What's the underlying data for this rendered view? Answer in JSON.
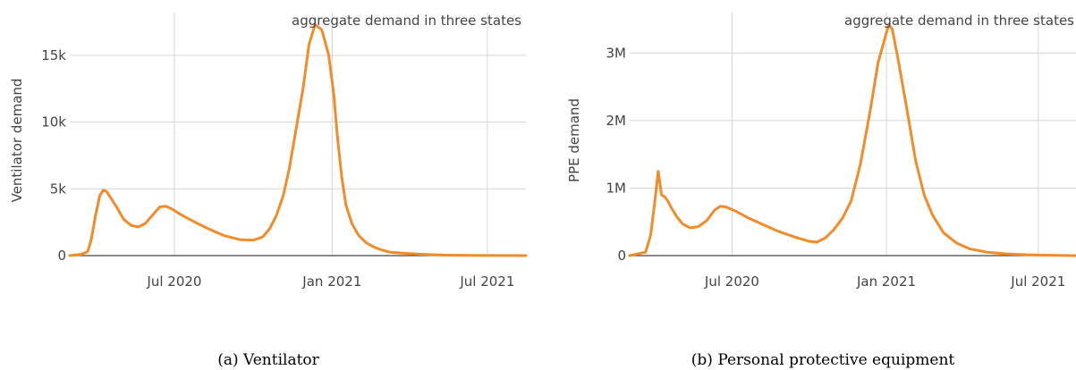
{
  "chart_data": [
    {
      "type": "line",
      "caption": "(a) Ventilator",
      "annotation": "aggregate demand in three states",
      "ylabel": "Ventilator demand",
      "xlabel": "",
      "x_ticks": [
        {
          "date": "2020-07-01",
          "label": "Jul 2020"
        },
        {
          "date": "2021-01-01",
          "label": "Jan 2021"
        },
        {
          "date": "2021-07-01",
          "label": "Jul 2021"
        }
      ],
      "y_ticks": [
        {
          "value": 0,
          "label": "0"
        },
        {
          "value": 5000,
          "label": "5k"
        },
        {
          "value": 10000,
          "label": "10k"
        },
        {
          "value": 15000,
          "label": "15k"
        }
      ],
      "xlim": [
        "2020-03-01",
        "2021-08-15"
      ],
      "ylim": [
        0,
        18200
      ],
      "grid": true,
      "color": "#f28c28",
      "series": [
        {
          "x": [
            "2020-03-01",
            "2020-03-15",
            "2020-03-22",
            "2020-03-26",
            "2020-03-31",
            "2020-04-05",
            "2020-04-09",
            "2020-04-13",
            "2020-04-18",
            "2020-04-25",
            "2020-05-03",
            "2020-05-12",
            "2020-05-20",
            "2020-05-28",
            "2020-06-05",
            "2020-06-14",
            "2020-06-21",
            "2020-06-28",
            "2020-07-04",
            "2020-07-12",
            "2020-07-25",
            "2020-08-10",
            "2020-08-28",
            "2020-09-15",
            "2020-10-01",
            "2020-10-12",
            "2020-10-20",
            "2020-10-28",
            "2020-11-05",
            "2020-11-12",
            "2020-11-20",
            "2020-11-28",
            "2020-12-05",
            "2020-12-12",
            "2020-12-20",
            "2020-12-28",
            "2021-01-03",
            "2021-01-07",
            "2021-01-12",
            "2021-01-17",
            "2021-01-24",
            "2021-02-01",
            "2021-02-10",
            "2021-02-20",
            "2021-03-01",
            "2021-03-10",
            "2021-03-20",
            "2021-04-01",
            "2021-04-15",
            "2021-05-01",
            "2021-05-20",
            "2021-06-10",
            "2021-07-01",
            "2021-07-25",
            "2021-08-15"
          ],
          "y": [
            0,
            100,
            300,
            1200,
            3000,
            4500,
            4900,
            4800,
            4300,
            3600,
            2700,
            2250,
            2150,
            2400,
            3000,
            3650,
            3700,
            3500,
            3250,
            2950,
            2500,
            2000,
            1500,
            1200,
            1150,
            1400,
            2000,
            3000,
            4500,
            6500,
            9500,
            12500,
            15800,
            17300,
            16900,
            15000,
            12000,
            9000,
            6000,
            3800,
            2400,
            1500,
            950,
            600,
            400,
            250,
            200,
            150,
            100,
            60,
            30,
            20,
            10,
            5,
            0
          ]
        }
      ]
    },
    {
      "type": "line",
      "caption": "(b) Personal protective equipment",
      "annotation": "aggregate demand in three states",
      "ylabel": "PPE demand",
      "xlabel": "",
      "x_ticks": [
        {
          "date": "2020-07-01",
          "label": "Jul 2020"
        },
        {
          "date": "2021-01-01",
          "label": "Jan 2021"
        },
        {
          "date": "2021-07-01",
          "label": "Jul 2021"
        }
      ],
      "y_ticks": [
        {
          "value": 0,
          "label": "0"
        },
        {
          "value": 1000000,
          "label": "1M"
        },
        {
          "value": 2000000,
          "label": "2M"
        },
        {
          "value": 3000000,
          "label": "3M"
        }
      ],
      "xlim": [
        "2020-03-01",
        "2021-08-15"
      ],
      "ylim": [
        0,
        3600000
      ],
      "grid": true,
      "color": "#f28c28",
      "series": [
        {
          "x": [
            "2020-03-01",
            "2020-03-20",
            "2020-03-26",
            "2020-03-31",
            "2020-04-04",
            "2020-04-08",
            "2020-04-12",
            "2020-04-16",
            "2020-04-20",
            "2020-04-26",
            "2020-05-03",
            "2020-05-12",
            "2020-05-22",
            "2020-06-01",
            "2020-06-10",
            "2020-06-17",
            "2020-06-24",
            "2020-07-05",
            "2020-07-20",
            "2020-08-05",
            "2020-08-25",
            "2020-09-15",
            "2020-10-01",
            "2020-10-10",
            "2020-10-20",
            "2020-10-30",
            "2020-11-10",
            "2020-11-20",
            "2020-12-01",
            "2020-12-12",
            "2020-12-22",
            "2021-01-01",
            "2021-01-04",
            "2021-01-08",
            "2021-01-15",
            "2021-01-25",
            "2021-02-05",
            "2021-02-15",
            "2021-02-25",
            "2021-03-10",
            "2021-03-25",
            "2021-04-10",
            "2021-05-01",
            "2021-05-25",
            "2021-06-20",
            "2021-07-15",
            "2021-08-15"
          ],
          "y": [
            0,
            50000,
            300000,
            800000,
            1250000,
            900000,
            870000,
            800000,
            700000,
            580000,
            470000,
            410000,
            430000,
            520000,
            670000,
            730000,
            720000,
            660000,
            560000,
            470000,
            360000,
            270000,
            210000,
            200000,
            260000,
            380000,
            560000,
            810000,
            1350000,
            2100000,
            2850000,
            3300000,
            3420000,
            3350000,
            2900000,
            2200000,
            1400000,
            900000,
            600000,
            340000,
            190000,
            100000,
            50000,
            25000,
            12000,
            5000,
            0
          ]
        }
      ]
    }
  ]
}
